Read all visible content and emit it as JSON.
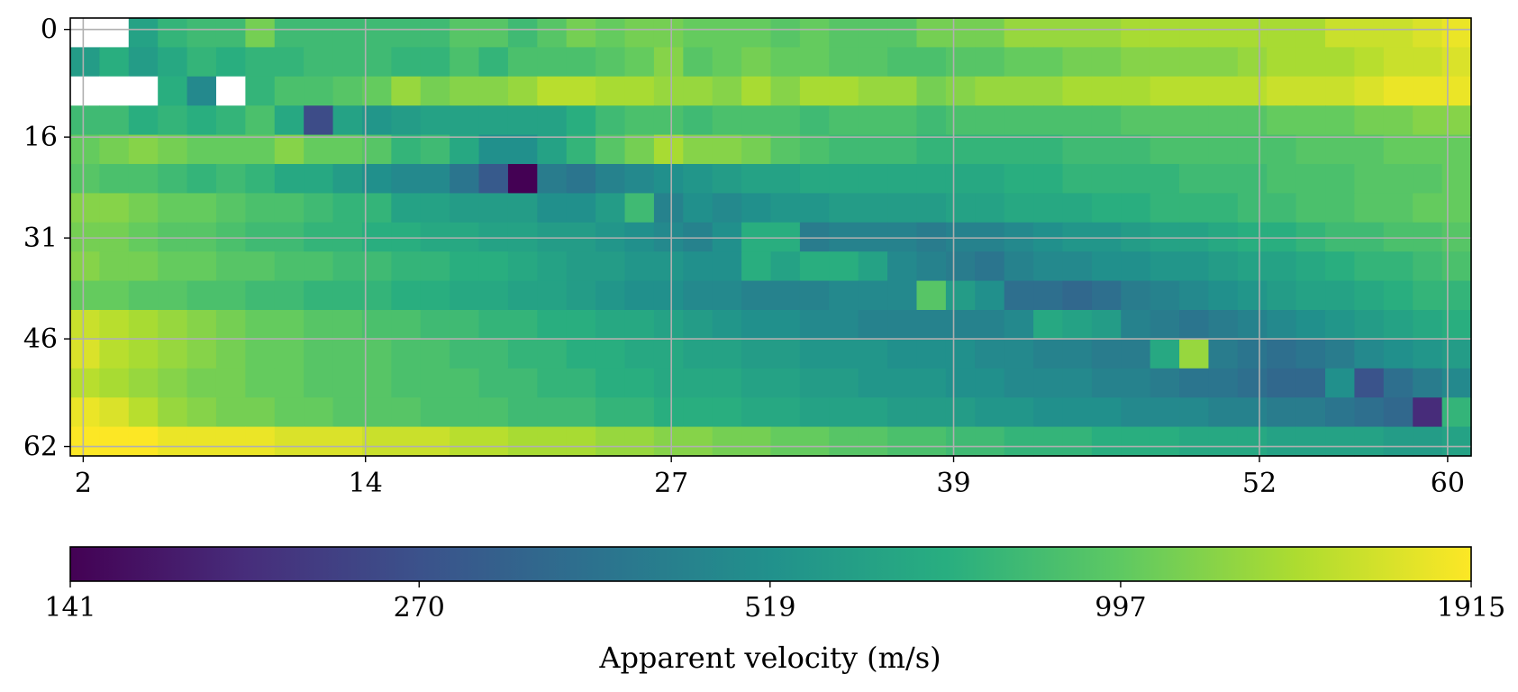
{
  "chart_data": {
    "type": "heatmap",
    "title": "",
    "xlabel": "",
    "ylabel": "",
    "x_ticks": [
      "2",
      "14",
      "27",
      "39",
      "52",
      "60"
    ],
    "y_ticks": [
      "0",
      "16",
      "31",
      "46",
      "62"
    ],
    "grid": true,
    "colormap": "viridis",
    "color_scale": "log",
    "colorbar": {
      "label": "Apparent velocity (m/s)",
      "ticks": [
        "141",
        "270",
        "519",
        "997",
        "1915"
      ],
      "range": [
        141,
        1915
      ]
    },
    "grid_shape": {
      "columns": 48,
      "rows": 15
    },
    "missing_cells": [
      [
        0,
        0
      ],
      [
        1,
        0
      ],
      [
        0,
        2
      ],
      [
        1,
        2
      ],
      [
        2,
        2
      ],
      [
        5,
        2
      ]
    ],
    "values_log2": [
      [
        0,
        8.5,
        9.3,
        9.6,
        9.7,
        9.7,
        10.1,
        9.7,
        9.7,
        9.7,
        9.7,
        9.7,
        9.7,
        9.9,
        9.9,
        9.7,
        9.9,
        10.1,
        10.0,
        10.1,
        10.1,
        10.0,
        10.0,
        10.0,
        9.9,
        10.0,
        9.9,
        9.9,
        9.9,
        10.1,
        10.1,
        10.1,
        10.3,
        10.3,
        10.3,
        10.3,
        10.4,
        10.4,
        10.4,
        10.4,
        10.4,
        10.4,
        10.4,
        10.6,
        10.6,
        10.6,
        10.7,
        10.8
      ],
      [
        9.2,
        9.5,
        9.2,
        9.4,
        9.6,
        9.5,
        9.6,
        9.6,
        9.7,
        9.7,
        9.7,
        9.6,
        9.6,
        9.8,
        9.6,
        9.8,
        9.8,
        9.8,
        9.9,
        10.0,
        10.2,
        9.9,
        10.0,
        10.1,
        10.0,
        10.0,
        9.9,
        9.9,
        9.8,
        9.8,
        9.9,
        9.9,
        10.0,
        10.0,
        10.1,
        10.1,
        10.2,
        10.2,
        10.2,
        10.2,
        10.3,
        10.4,
        10.4,
        10.4,
        10.5,
        10.6,
        10.6,
        10.7
      ],
      [
        0,
        0,
        0,
        9.5,
        8.9,
        0,
        9.6,
        9.8,
        9.8,
        9.9,
        10.0,
        10.3,
        10.1,
        10.2,
        10.2,
        10.3,
        10.5,
        10.5,
        10.4,
        10.4,
        10.3,
        10.3,
        10.2,
        10.4,
        10.2,
        10.4,
        10.4,
        10.3,
        10.3,
        10.1,
        10.2,
        10.3,
        10.3,
        10.3,
        10.4,
        10.4,
        10.4,
        10.5,
        10.5,
        10.5,
        10.5,
        10.6,
        10.6,
        10.6,
        10.7,
        10.8,
        10.8,
        10.8
      ],
      [
        9.7,
        9.7,
        9.5,
        9.6,
        9.5,
        9.6,
        9.8,
        9.4,
        8.0,
        9.3,
        9.1,
        9.2,
        9.3,
        9.3,
        9.3,
        9.3,
        9.3,
        9.5,
        9.7,
        9.8,
        9.8,
        9.7,
        9.8,
        9.8,
        9.8,
        9.7,
        9.8,
        9.8,
        9.8,
        9.7,
        9.8,
        9.8,
        9.8,
        9.8,
        9.8,
        9.8,
        9.9,
        9.9,
        9.9,
        9.9,
        9.9,
        10.0,
        10.0,
        10.0,
        10.1,
        10.1,
        10.2,
        10.2
      ],
      [
        10.0,
        10.1,
        10.2,
        10.1,
        10.0,
        10.0,
        10.0,
        10.2,
        10.0,
        10.0,
        9.9,
        9.6,
        9.7,
        9.4,
        9.0,
        9.0,
        9.3,
        9.6,
        9.9,
        10.1,
        10.4,
        10.2,
        10.2,
        10.1,
        9.9,
        9.8,
        9.7,
        9.7,
        9.7,
        9.6,
        9.6,
        9.6,
        9.6,
        9.6,
        9.7,
        9.7,
        9.7,
        9.8,
        9.8,
        9.8,
        9.8,
        9.8,
        9.9,
        9.9,
        9.9,
        10.0,
        10.0,
        10.0
      ],
      [
        9.9,
        9.8,
        9.8,
        9.7,
        9.6,
        9.7,
        9.6,
        9.4,
        9.4,
        9.2,
        9.0,
        8.9,
        8.9,
        8.6,
        8.2,
        7.1,
        8.7,
        8.6,
        8.8,
        8.9,
        9.0,
        9.1,
        9.2,
        9.3,
        9.3,
        9.4,
        9.4,
        9.4,
        9.4,
        9.4,
        9.4,
        9.4,
        9.5,
        9.5,
        9.6,
        9.6,
        9.6,
        9.6,
        9.7,
        9.7,
        9.7,
        9.8,
        9.8,
        9.8,
        9.9,
        9.9,
        9.9,
        10.0
      ],
      [
        10.2,
        10.2,
        10.1,
        10.0,
        10.0,
        9.9,
        9.8,
        9.8,
        9.7,
        9.6,
        9.6,
        9.3,
        9.3,
        9.2,
        9.2,
        9.2,
        9.0,
        9.0,
        9.2,
        9.7,
        8.8,
        9.0,
        8.9,
        9.0,
        9.1,
        9.1,
        9.2,
        9.2,
        9.2,
        9.2,
        9.3,
        9.3,
        9.4,
        9.4,
        9.4,
        9.5,
        9.5,
        9.6,
        9.6,
        9.6,
        9.7,
        9.7,
        9.8,
        9.8,
        9.9,
        9.9,
        10.0,
        10.0
      ],
      [
        10.1,
        10.1,
        10.0,
        9.9,
        9.9,
        9.8,
        9.7,
        9.7,
        9.6,
        9.6,
        9.5,
        9.5,
        9.4,
        9.4,
        9.3,
        9.3,
        9.2,
        9.2,
        9.1,
        9.0,
        8.9,
        8.8,
        9.0,
        9.5,
        9.5,
        8.7,
        8.8,
        8.8,
        8.8,
        8.7,
        8.8,
        8.8,
        8.9,
        9.0,
        9.1,
        9.1,
        9.2,
        9.3,
        9.3,
        9.4,
        9.5,
        9.5,
        9.6,
        9.7,
        9.7,
        9.8,
        9.8,
        9.9
      ],
      [
        10.2,
        10.1,
        10.1,
        10.0,
        10.0,
        9.9,
        9.9,
        9.8,
        9.8,
        9.7,
        9.7,
        9.6,
        9.6,
        9.5,
        9.5,
        9.4,
        9.3,
        9.2,
        9.2,
        9.1,
        9.1,
        9.0,
        9.0,
        9.5,
        9.3,
        9.5,
        9.5,
        9.3,
        8.9,
        8.8,
        8.7,
        8.6,
        8.8,
        8.9,
        8.9,
        9.0,
        9.0,
        9.1,
        9.1,
        9.2,
        9.3,
        9.3,
        9.4,
        9.5,
        9.6,
        9.6,
        9.7,
        9.8
      ],
      [
        10.0,
        10.0,
        9.9,
        9.9,
        9.8,
        9.8,
        9.7,
        9.7,
        9.6,
        9.6,
        9.6,
        9.5,
        9.5,
        9.4,
        9.4,
        9.3,
        9.3,
        9.2,
        9.1,
        9.0,
        9.0,
        8.9,
        8.9,
        8.8,
        8.8,
        8.8,
        8.9,
        8.9,
        8.9,
        9.9,
        9.2,
        9.0,
        8.5,
        8.5,
        8.4,
        8.5,
        8.7,
        8.8,
        8.9,
        9.0,
        9.1,
        9.2,
        9.3,
        9.3,
        9.4,
        9.5,
        9.6,
        9.6
      ],
      [
        10.6,
        10.5,
        10.4,
        10.3,
        10.2,
        10.1,
        10.0,
        10.0,
        9.9,
        9.9,
        9.8,
        9.8,
        9.7,
        9.7,
        9.6,
        9.6,
        9.5,
        9.5,
        9.4,
        9.4,
        9.3,
        9.2,
        9.1,
        9.0,
        9.0,
        8.9,
        8.9,
        8.8,
        8.8,
        8.8,
        8.8,
        8.8,
        8.9,
        9.4,
        9.3,
        9.2,
        8.8,
        8.7,
        8.6,
        8.7,
        8.8,
        8.9,
        9.0,
        9.1,
        9.2,
        9.3,
        9.4,
        9.5
      ],
      [
        10.7,
        10.5,
        10.4,
        10.3,
        10.2,
        10.1,
        10.0,
        10.0,
        9.9,
        9.9,
        9.9,
        9.8,
        9.8,
        9.7,
        9.7,
        9.6,
        9.6,
        9.5,
        9.5,
        9.4,
        9.4,
        9.3,
        9.3,
        9.2,
        9.2,
        9.1,
        9.1,
        9.1,
        9.0,
        9.0,
        9.0,
        8.9,
        8.9,
        8.8,
        8.8,
        8.7,
        8.7,
        9.4,
        10.3,
        8.7,
        8.6,
        8.5,
        8.6,
        8.7,
        8.9,
        9.0,
        9.1,
        9.2
      ],
      [
        10.5,
        10.4,
        10.3,
        10.2,
        10.1,
        10.1,
        10.0,
        10.0,
        9.9,
        9.9,
        9.9,
        9.8,
        9.8,
        9.8,
        9.7,
        9.7,
        9.6,
        9.6,
        9.5,
        9.5,
        9.4,
        9.4,
        9.4,
        9.3,
        9.3,
        9.2,
        9.2,
        9.1,
        9.1,
        9.1,
        9.0,
        9.0,
        8.9,
        8.9,
        8.9,
        8.8,
        8.8,
        8.7,
        8.6,
        8.6,
        8.5,
        8.4,
        8.4,
        9.0,
        8.1,
        8.5,
        8.7,
        8.9
      ],
      [
        10.8,
        10.7,
        10.5,
        10.3,
        10.2,
        10.1,
        10.1,
        10.0,
        10.0,
        9.9,
        9.9,
        9.9,
        9.8,
        9.8,
        9.8,
        9.7,
        9.7,
        9.7,
        9.6,
        9.6,
        9.5,
        9.5,
        9.5,
        9.4,
        9.4,
        9.3,
        9.3,
        9.3,
        9.2,
        9.2,
        9.2,
        9.1,
        9.1,
        9.0,
        9.0,
        9.0,
        8.9,
        8.9,
        8.9,
        8.8,
        8.8,
        8.7,
        8.7,
        8.6,
        8.5,
        8.4,
        7.6,
        9.6
      ],
      [
        10.9,
        10.9,
        10.9,
        10.8,
        10.8,
        10.8,
        10.8,
        10.7,
        10.7,
        10.7,
        10.6,
        10.6,
        10.6,
        10.5,
        10.5,
        10.4,
        10.4,
        10.4,
        10.3,
        10.3,
        10.2,
        10.2,
        10.1,
        10.1,
        10.0,
        10.0,
        9.9,
        9.9,
        9.8,
        9.8,
        9.7,
        9.7,
        9.6,
        9.6,
        9.6,
        9.5,
        9.5,
        9.5,
        9.4,
        9.4,
        9.4,
        9.3,
        9.3,
        9.3,
        9.3,
        9.2,
        9.2,
        9.3
      ]
    ]
  }
}
